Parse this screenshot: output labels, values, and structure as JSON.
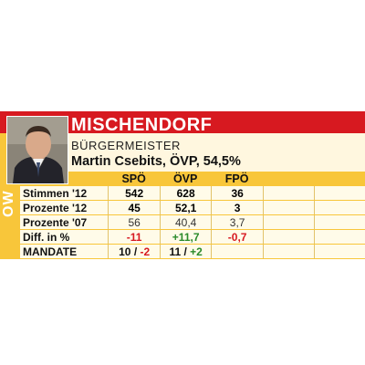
{
  "header": {
    "municipality": "MISCHENDORF",
    "role": "BÜRGERMEISTER",
    "person": "Martin Csebits, ÖVP, 54,5%"
  },
  "side_label": "OW",
  "colors": {
    "red": "#d71920",
    "yellow": "#f8c63a",
    "negative": "#d71920",
    "positive": "#2a8a2a"
  },
  "table": {
    "parties": [
      "SPÖ",
      "ÖVP",
      "FPÖ"
    ],
    "rows": [
      {
        "label": "Stimmen '12",
        "values": [
          "542",
          "628",
          "36"
        ]
      },
      {
        "label": "Prozente '12",
        "values": [
          "45",
          "52,1",
          "3"
        ]
      },
      {
        "label": "Prozente '07",
        "values": [
          "56",
          "40,4",
          "3,7"
        ]
      },
      {
        "label": "Diff. in %",
        "values": [
          "-11",
          "+11,7",
          "-0,7"
        ]
      },
      {
        "label": "MANDATE",
        "mandates": [
          {
            "count": "10",
            "sep": "/",
            "change": "-2"
          },
          {
            "count": "11",
            "sep": "/",
            "change": "+2"
          },
          {
            "count": "",
            "sep": "",
            "change": ""
          }
        ]
      }
    ]
  }
}
